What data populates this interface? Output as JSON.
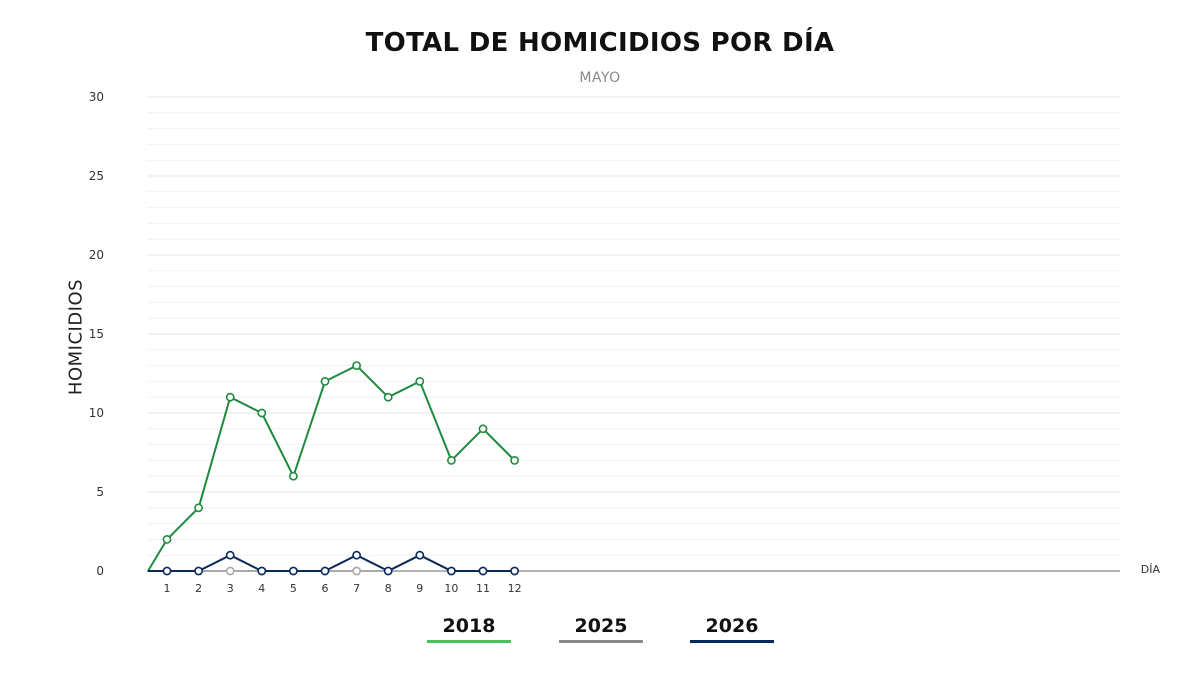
{
  "chart_data": {
    "type": "line",
    "title": "TOTAL DE HOMICIDIOS POR DÍA",
    "subtitle": "MAYO",
    "xlabel": "DÍA",
    "ylabel": "HOMICIDIOS",
    "ylim": [
      0,
      30
    ],
    "yticks": [
      0,
      5,
      10,
      15,
      20,
      25,
      30
    ],
    "x": [
      1,
      2,
      3,
      4,
      5,
      6,
      7,
      8,
      9,
      10,
      11,
      12
    ],
    "grid": true,
    "legend_position": "bottom",
    "series": [
      {
        "name": "2018",
        "color": "#1f8a3f",
        "legend_color": "#4cc25e",
        "values": [
          2,
          4,
          11,
          10,
          6,
          12,
          13,
          11,
          12,
          7,
          9,
          7
        ]
      },
      {
        "name": "2025",
        "color": "#a9a9a9",
        "legend_color": "#8a8a8a",
        "values": [
          0,
          0,
          0,
          0,
          0,
          0,
          0,
          0,
          1,
          0,
          0,
          0
        ]
      },
      {
        "name": "2026",
        "color": "#0b2a5c",
        "legend_color": "#0b2a5c",
        "values": [
          0,
          0,
          1,
          0,
          0,
          0,
          1,
          0,
          1,
          0,
          0,
          0
        ]
      }
    ]
  }
}
